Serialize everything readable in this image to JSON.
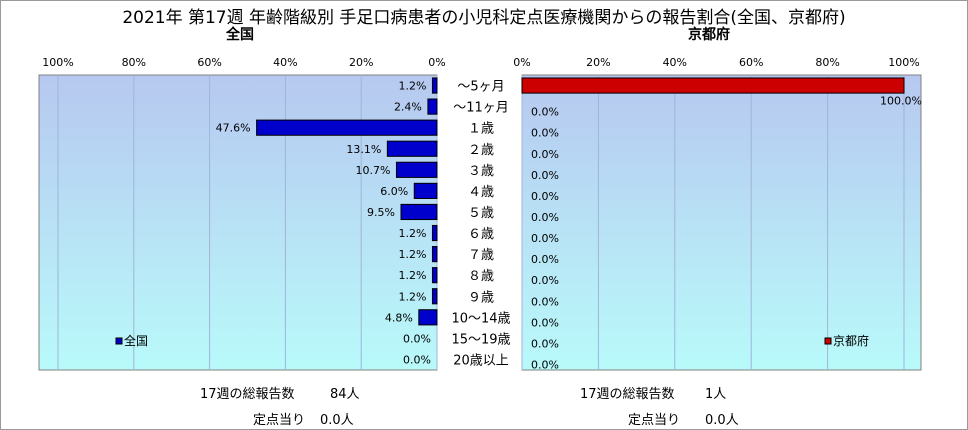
{
  "title": "2021年 第17週 年齢階級別 手足口病患者の小児科定点医療機関からの報告割合(全国、京都府)",
  "chart_data": [
    {
      "type": "bar",
      "title": "全国",
      "legend": "全国",
      "legend_position": "bottom-left",
      "color": "#0000cc",
      "xlim": [
        0,
        100
      ],
      "orientation": "horizontal-reversed",
      "ticks": [
        "100%",
        "80%",
        "60%",
        "40%",
        "20%",
        "0%"
      ],
      "categories": [
        "～5ヶ月",
        "～11ヶ月",
        "１歳",
        "２歳",
        "３歳",
        "４歳",
        "５歳",
        "６歳",
        "７歳",
        "８歳",
        "９歳",
        "10～14歳",
        "15～19歳",
        "20歳以上"
      ],
      "values": [
        1.2,
        2.4,
        47.6,
        13.1,
        10.7,
        6.0,
        9.5,
        1.2,
        1.2,
        1.2,
        1.2,
        4.8,
        0.0,
        0.0
      ],
      "labels": [
        "1.2%",
        "2.4%",
        "47.6%",
        "13.1%",
        "10.7%",
        "6.0%",
        "9.5%",
        "1.2%",
        "1.2%",
        "1.2%",
        "1.2%",
        "4.8%",
        "0.0%",
        "0.0%"
      ]
    },
    {
      "type": "bar",
      "title": "京都府",
      "legend": "京都府",
      "legend_position": "bottom-right",
      "color": "#cc0000",
      "xlim": [
        0,
        100
      ],
      "orientation": "horizontal",
      "ticks": [
        "0%",
        "20%",
        "40%",
        "60%",
        "80%",
        "100%"
      ],
      "categories": [
        "～5ヶ月",
        "～11ヶ月",
        "１歳",
        "２歳",
        "３歳",
        "４歳",
        "５歳",
        "６歳",
        "７歳",
        "８歳",
        "９歳",
        "10～14歳",
        "15～19歳",
        "20歳以上"
      ],
      "values": [
        100.0,
        0.0,
        0.0,
        0.0,
        0.0,
        0.0,
        0.0,
        0.0,
        0.0,
        0.0,
        0.0,
        0.0,
        0.0,
        0.0
      ],
      "labels": [
        "100.0%",
        "0.0%",
        "0.0%",
        "0.0%",
        "0.0%",
        "0.0%",
        "0.0%",
        "0.0%",
        "0.0%",
        "0.0%",
        "0.0%",
        "0.0%",
        "0.0%",
        "0.0%"
      ]
    }
  ],
  "footer": {
    "national": {
      "total_label": "17週の総報告数",
      "total_value": "84人",
      "per_label": "定点当り",
      "per_value": "0.0人"
    },
    "kyoto": {
      "total_label": "17週の総報告数",
      "total_value": "1人",
      "per_label": "定点当り",
      "per_value": "0.0人"
    }
  },
  "colors": {
    "plot_top": "#b7c8f0",
    "plot_bottom": "#b8fafa",
    "grid": "#a0b4d8"
  }
}
